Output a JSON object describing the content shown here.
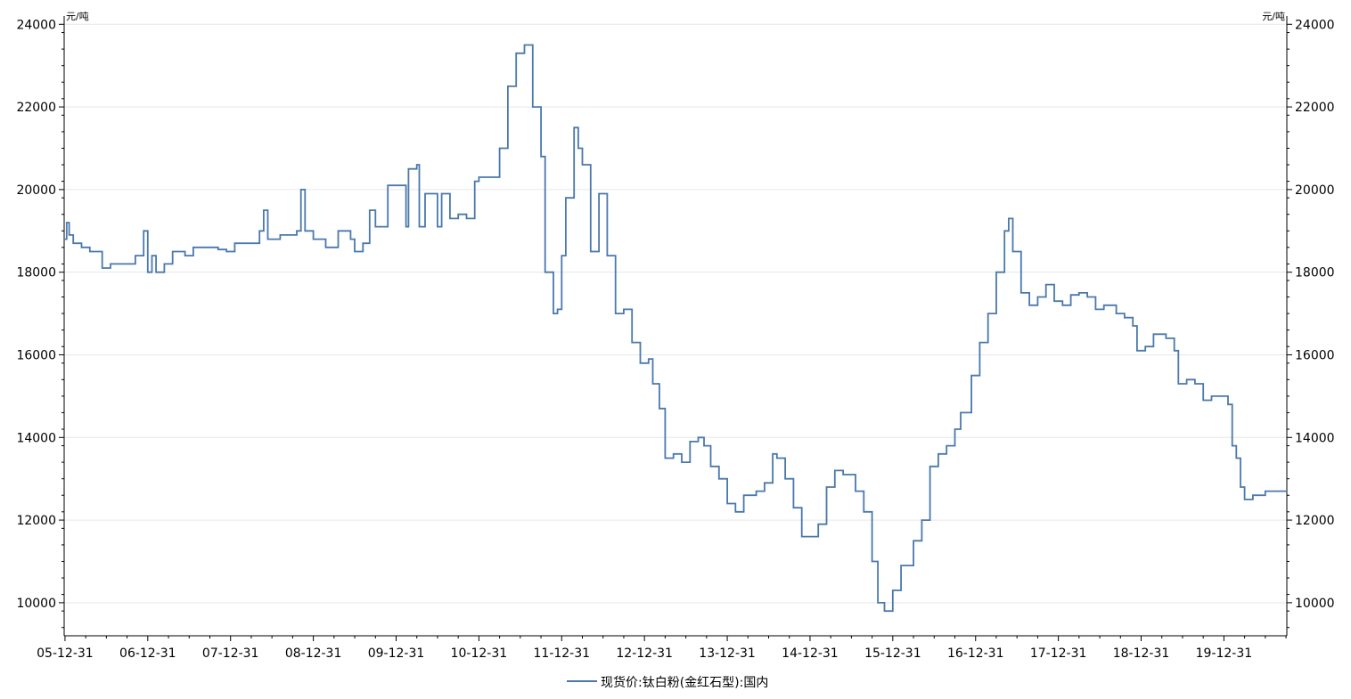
{
  "chart_data": {
    "type": "line",
    "left_unit": "元/吨",
    "right_unit": "元/吨",
    "y_ticks": [
      10000,
      12000,
      14000,
      16000,
      18000,
      20000,
      22000,
      24000
    ],
    "ylim": [
      9200,
      24200
    ],
    "x_ticks": [
      "05-12-31",
      "06-12-31",
      "07-12-31",
      "08-12-31",
      "09-12-31",
      "10-12-31",
      "11-12-31",
      "12-12-31",
      "13-12-31",
      "14-12-31",
      "15-12-31",
      "16-12-31",
      "17-12-31",
      "18-12-31",
      "19-12-31"
    ],
    "xlim": [
      2005.99,
      2020.76
    ],
    "grid": "horizontal",
    "legend_position": "bottom-center",
    "series": [
      {
        "name": "现货价:钛白粉(金红石型):国内",
        "color": "#4a78ad",
        "points": [
          [
            2006.0,
            18800
          ],
          [
            2006.02,
            19200
          ],
          [
            2006.05,
            18900
          ],
          [
            2006.1,
            18700
          ],
          [
            2006.2,
            18600
          ],
          [
            2006.3,
            18500
          ],
          [
            2006.45,
            18100
          ],
          [
            2006.55,
            18200
          ],
          [
            2006.7,
            18200
          ],
          [
            2006.85,
            18400
          ],
          [
            2006.95,
            19000
          ],
          [
            2007.0,
            18000
          ],
          [
            2007.05,
            18400
          ],
          [
            2007.1,
            18000
          ],
          [
            2007.2,
            18200
          ],
          [
            2007.3,
            18500
          ],
          [
            2007.45,
            18400
          ],
          [
            2007.55,
            18600
          ],
          [
            2007.7,
            18600
          ],
          [
            2007.85,
            18550
          ],
          [
            2007.95,
            18500
          ],
          [
            2008.05,
            18700
          ],
          [
            2008.3,
            18700
          ],
          [
            2008.35,
            19000
          ],
          [
            2008.4,
            19500
          ],
          [
            2008.45,
            18800
          ],
          [
            2008.6,
            18900
          ],
          [
            2008.8,
            19000
          ],
          [
            2008.85,
            20000
          ],
          [
            2008.9,
            19000
          ],
          [
            2009.0,
            18800
          ],
          [
            2009.15,
            18600
          ],
          [
            2009.3,
            19000
          ],
          [
            2009.45,
            18800
          ],
          [
            2009.5,
            18500
          ],
          [
            2009.6,
            18700
          ],
          [
            2009.68,
            19500
          ],
          [
            2009.75,
            19100
          ],
          [
            2009.85,
            19100
          ],
          [
            2009.9,
            20100
          ],
          [
            2010.08,
            20100
          ],
          [
            2010.12,
            19100
          ],
          [
            2010.15,
            20500
          ],
          [
            2010.25,
            20600
          ],
          [
            2010.28,
            19100
          ],
          [
            2010.35,
            19900
          ],
          [
            2010.5,
            19100
          ],
          [
            2010.55,
            19900
          ],
          [
            2010.65,
            19300
          ],
          [
            2010.75,
            19400
          ],
          [
            2010.85,
            19300
          ],
          [
            2010.95,
            20200
          ],
          [
            2011.0,
            20300
          ],
          [
            2011.15,
            20300
          ],
          [
            2011.25,
            21000
          ],
          [
            2011.35,
            22500
          ],
          [
            2011.45,
            23300
          ],
          [
            2011.55,
            23500
          ],
          [
            2011.65,
            22000
          ],
          [
            2011.75,
            20800
          ],
          [
            2011.8,
            18000
          ],
          [
            2011.9,
            17000
          ],
          [
            2011.95,
            17100
          ],
          [
            2012.0,
            18400
          ],
          [
            2012.05,
            19800
          ],
          [
            2012.15,
            21500
          ],
          [
            2012.2,
            21000
          ],
          [
            2012.25,
            20600
          ],
          [
            2012.35,
            18500
          ],
          [
            2012.45,
            19900
          ],
          [
            2012.55,
            18400
          ],
          [
            2012.65,
            17000
          ],
          [
            2012.75,
            17100
          ],
          [
            2012.85,
            16300
          ],
          [
            2012.95,
            15800
          ],
          [
            2013.05,
            15900
          ],
          [
            2013.1,
            15300
          ],
          [
            2013.18,
            14700
          ],
          [
            2013.25,
            13500
          ],
          [
            2013.35,
            13600
          ],
          [
            2013.45,
            13400
          ],
          [
            2013.55,
            13900
          ],
          [
            2013.65,
            14000
          ],
          [
            2013.72,
            13800
          ],
          [
            2013.8,
            13300
          ],
          [
            2013.9,
            13000
          ],
          [
            2014.0,
            12400
          ],
          [
            2014.1,
            12200
          ],
          [
            2014.2,
            12600
          ],
          [
            2014.35,
            12700
          ],
          [
            2014.45,
            12900
          ],
          [
            2014.55,
            13600
          ],
          [
            2014.6,
            13500
          ],
          [
            2014.7,
            13000
          ],
          [
            2014.8,
            12300
          ],
          [
            2014.9,
            11600
          ],
          [
            2014.98,
            11600
          ],
          [
            2015.1,
            11900
          ],
          [
            2015.2,
            12800
          ],
          [
            2015.3,
            13200
          ],
          [
            2015.4,
            13100
          ],
          [
            2015.55,
            12700
          ],
          [
            2015.65,
            12200
          ],
          [
            2015.75,
            11000
          ],
          [
            2015.82,
            10000
          ],
          [
            2015.9,
            9800
          ],
          [
            2016.0,
            10300
          ],
          [
            2016.1,
            10900
          ],
          [
            2016.25,
            11500
          ],
          [
            2016.35,
            12000
          ],
          [
            2016.45,
            13300
          ],
          [
            2016.55,
            13600
          ],
          [
            2016.65,
            13800
          ],
          [
            2016.75,
            14200
          ],
          [
            2016.82,
            14600
          ],
          [
            2016.95,
            15500
          ],
          [
            2017.05,
            16300
          ],
          [
            2017.15,
            17000
          ],
          [
            2017.25,
            18000
          ],
          [
            2017.35,
            19000
          ],
          [
            2017.4,
            19300
          ],
          [
            2017.45,
            18500
          ],
          [
            2017.55,
            17500
          ],
          [
            2017.65,
            17200
          ],
          [
            2017.75,
            17400
          ],
          [
            2017.85,
            17700
          ],
          [
            2017.95,
            17300
          ],
          [
            2018.05,
            17200
          ],
          [
            2018.15,
            17450
          ],
          [
            2018.25,
            17500
          ],
          [
            2018.35,
            17400
          ],
          [
            2018.45,
            17100
          ],
          [
            2018.55,
            17200
          ],
          [
            2018.7,
            17000
          ],
          [
            2018.8,
            16900
          ],
          [
            2018.9,
            16700
          ],
          [
            2018.95,
            16100
          ],
          [
            2019.05,
            16200
          ],
          [
            2019.15,
            16500
          ],
          [
            2019.3,
            16400
          ],
          [
            2019.4,
            16100
          ],
          [
            2019.45,
            15300
          ],
          [
            2019.55,
            15400
          ],
          [
            2019.65,
            15300
          ],
          [
            2019.75,
            14900
          ],
          [
            2019.85,
            15000
          ],
          [
            2020.0,
            15000
          ],
          [
            2020.05,
            14800
          ],
          [
            2020.1,
            13800
          ],
          [
            2020.15,
            13500
          ],
          [
            2020.2,
            12800
          ],
          [
            2020.25,
            12500
          ],
          [
            2020.35,
            12600
          ],
          [
            2020.5,
            12700
          ],
          [
            2020.75,
            12700
          ]
        ]
      }
    ]
  }
}
